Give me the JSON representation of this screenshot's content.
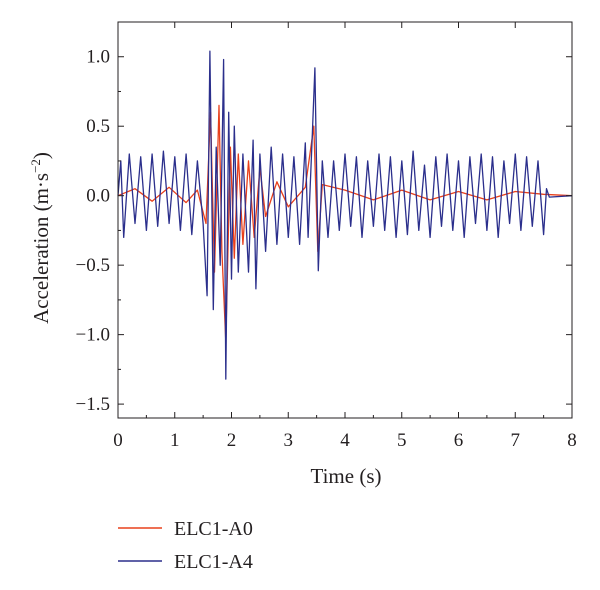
{
  "chart_data": {
    "type": "line",
    "xlabel": "Time (s)",
    "ylabel_main": "Acceleration (m·s",
    "ylabel_exp": "−2",
    "ylabel_close": ")",
    "xlim": [
      0,
      8
    ],
    "ylim": [
      -1.6,
      1.25
    ],
    "x_ticks": [
      0,
      1,
      2,
      3,
      4,
      5,
      6,
      7,
      8
    ],
    "x_tick_labels": [
      "0",
      "1",
      "2",
      "3",
      "4",
      "5",
      "6",
      "7",
      "8"
    ],
    "y_ticks": [
      1.0,
      0.5,
      0.0,
      -0.5,
      -1.0,
      -1.5
    ],
    "y_tick_labels": [
      "1.0",
      "0.5",
      "0.0",
      "−0.5",
      "−1.0",
      "−1.5"
    ],
    "grid": false,
    "legend_position": "below-plot",
    "series": [
      {
        "name": "ELC1-A0",
        "color": "#e8401c",
        "points": [
          [
            0,
            0
          ],
          [
            0.3,
            0.05
          ],
          [
            0.6,
            -0.04
          ],
          [
            0.9,
            0.06
          ],
          [
            1.2,
            -0.05
          ],
          [
            1.4,
            0.04
          ],
          [
            1.55,
            -0.2
          ],
          [
            1.63,
            0.6
          ],
          [
            1.7,
            -0.55
          ],
          [
            1.78,
            0.65
          ],
          [
            1.83,
            -0.4
          ],
          [
            1.9,
            -1.05
          ],
          [
            1.98,
            0.35
          ],
          [
            2.05,
            -0.45
          ],
          [
            2.12,
            0.3
          ],
          [
            2.2,
            -0.35
          ],
          [
            2.3,
            0.25
          ],
          [
            2.4,
            -0.3
          ],
          [
            2.5,
            0.2
          ],
          [
            2.6,
            -0.15
          ],
          [
            2.8,
            0.1
          ],
          [
            3.0,
            -0.08
          ],
          [
            3.3,
            0.06
          ],
          [
            3.45,
            0.5
          ],
          [
            3.52,
            -0.4
          ],
          [
            3.6,
            0.08
          ],
          [
            4.0,
            0.04
          ],
          [
            4.5,
            -0.03
          ],
          [
            5.0,
            0.04
          ],
          [
            5.5,
            -0.03
          ],
          [
            6.0,
            0.03
          ],
          [
            6.5,
            -0.03
          ],
          [
            7.0,
            0.03
          ],
          [
            7.5,
            0.01
          ],
          [
            8.0,
            0
          ]
        ]
      },
      {
        "name": "ELC1-A4",
        "color": "#2b2f8c",
        "points": [
          [
            0,
            0
          ],
          [
            0.05,
            0.25
          ],
          [
            0.1,
            -0.3
          ],
          [
            0.2,
            0.3
          ],
          [
            0.3,
            -0.2
          ],
          [
            0.4,
            0.28
          ],
          [
            0.5,
            -0.25
          ],
          [
            0.6,
            0.3
          ],
          [
            0.7,
            -0.22
          ],
          [
            0.8,
            0.32
          ],
          [
            0.9,
            -0.2
          ],
          [
            1.0,
            0.28
          ],
          [
            1.1,
            -0.25
          ],
          [
            1.2,
            0.3
          ],
          [
            1.3,
            -0.28
          ],
          [
            1.4,
            0.25
          ],
          [
            1.5,
            -0.2
          ],
          [
            1.57,
            -0.72
          ],
          [
            1.62,
            1.04
          ],
          [
            1.68,
            -0.82
          ],
          [
            1.73,
            0.35
          ],
          [
            1.8,
            -0.5
          ],
          [
            1.86,
            0.98
          ],
          [
            1.9,
            -1.32
          ],
          [
            1.95,
            0.6
          ],
          [
            2.0,
            -0.6
          ],
          [
            2.05,
            0.5
          ],
          [
            2.12,
            -0.55
          ],
          [
            2.2,
            0.3
          ],
          [
            2.3,
            -0.55
          ],
          [
            2.38,
            0.4
          ],
          [
            2.43,
            -0.67
          ],
          [
            2.5,
            0.3
          ],
          [
            2.6,
            -0.4
          ],
          [
            2.7,
            0.35
          ],
          [
            2.8,
            -0.35
          ],
          [
            2.9,
            0.3
          ],
          [
            3.0,
            -0.3
          ],
          [
            3.1,
            0.28
          ],
          [
            3.2,
            -0.35
          ],
          [
            3.3,
            0.38
          ],
          [
            3.35,
            -0.3
          ],
          [
            3.42,
            0.4
          ],
          [
            3.47,
            0.92
          ],
          [
            3.53,
            -0.54
          ],
          [
            3.6,
            0.25
          ],
          [
            3.7,
            -0.3
          ],
          [
            3.8,
            0.25
          ],
          [
            3.9,
            -0.25
          ],
          [
            4.0,
            0.3
          ],
          [
            4.1,
            -0.22
          ],
          [
            4.2,
            0.28
          ],
          [
            4.3,
            -0.3
          ],
          [
            4.4,
            0.25
          ],
          [
            4.5,
            -0.22
          ],
          [
            4.6,
            0.3
          ],
          [
            4.7,
            -0.25
          ],
          [
            4.8,
            0.28
          ],
          [
            4.9,
            -0.3
          ],
          [
            5.0,
            0.25
          ],
          [
            5.1,
            -0.28
          ],
          [
            5.2,
            0.32
          ],
          [
            5.3,
            -0.25
          ],
          [
            5.4,
            0.22
          ],
          [
            5.5,
            -0.3
          ],
          [
            5.6,
            0.28
          ],
          [
            5.7,
            -0.22
          ],
          [
            5.8,
            0.3
          ],
          [
            5.9,
            -0.25
          ],
          [
            6.0,
            0.25
          ],
          [
            6.1,
            -0.3
          ],
          [
            6.2,
            0.28
          ],
          [
            6.3,
            -0.2
          ],
          [
            6.4,
            0.3
          ],
          [
            6.5,
            -0.25
          ],
          [
            6.6,
            0.28
          ],
          [
            6.7,
            -0.3
          ],
          [
            6.8,
            0.25
          ],
          [
            6.9,
            -0.2
          ],
          [
            7.0,
            0.3
          ],
          [
            7.1,
            -0.25
          ],
          [
            7.2,
            0.28
          ],
          [
            7.3,
            -0.22
          ],
          [
            7.4,
            0.25
          ],
          [
            7.5,
            -0.28
          ],
          [
            7.55,
            0.05
          ],
          [
            7.6,
            -0.01
          ],
          [
            8.0,
            0
          ]
        ]
      }
    ]
  }
}
